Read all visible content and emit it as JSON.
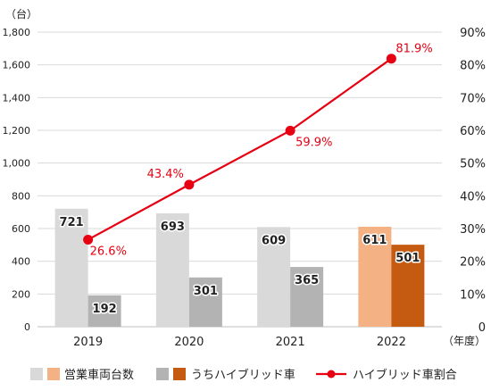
{
  "chart_data": {
    "type": "bar+line",
    "categories": [
      "2019",
      "2020",
      "2021",
      "2022"
    ],
    "y_left": {
      "unit": "（台）",
      "ylim": [
        0,
        1800
      ],
      "ticks": [
        "0",
        "200",
        "400",
        "600",
        "800",
        "1,000",
        "1,200",
        "1,400",
        "1,600",
        "1,800"
      ]
    },
    "y_right": {
      "ylim": [
        0,
        90
      ],
      "ticks": [
        "0",
        "10%",
        "20%",
        "30%",
        "40%",
        "50%",
        "60%",
        "70%",
        "80%",
        "90%"
      ]
    },
    "x_unit": "（年度）",
    "grid": true,
    "series": [
      {
        "name": "営業車両台数",
        "kind": "bar",
        "axis": "left",
        "values": [
          721,
          693,
          609,
          611
        ],
        "labels": [
          "721",
          "693",
          "609",
          "611"
        ],
        "colors": [
          "#d9d9d9",
          "#d9d9d9",
          "#d9d9d9",
          "#f4b183"
        ]
      },
      {
        "name": "うちハイブリッド車",
        "kind": "bar",
        "axis": "left",
        "values": [
          192,
          301,
          365,
          501
        ],
        "labels": [
          "192",
          "301",
          "365",
          "501"
        ],
        "colors": [
          "#b3b3b3",
          "#b3b3b3",
          "#b3b3b3",
          "#c55a11"
        ]
      },
      {
        "name": "ハイブリッド車割合",
        "kind": "line",
        "axis": "right",
        "values": [
          26.6,
          43.4,
          59.9,
          81.9
        ],
        "labels": [
          "26.6%",
          "43.4%",
          "59.9%",
          "81.9%"
        ],
        "color": "#e60012"
      }
    ],
    "legend": {
      "placement": "bottom",
      "items": [
        {
          "label": "営業車両台数",
          "swatches": [
            "#d9d9d9",
            "#f4b183"
          ],
          "kind": "box"
        },
        {
          "label": "うちハイブリッド車",
          "swatches": [
            "#b3b3b3",
            "#c55a11"
          ],
          "kind": "box"
        },
        {
          "label": "ハイブリッド車割合",
          "swatches": [
            "#e60012"
          ],
          "kind": "line-marker"
        }
      ]
    }
  }
}
